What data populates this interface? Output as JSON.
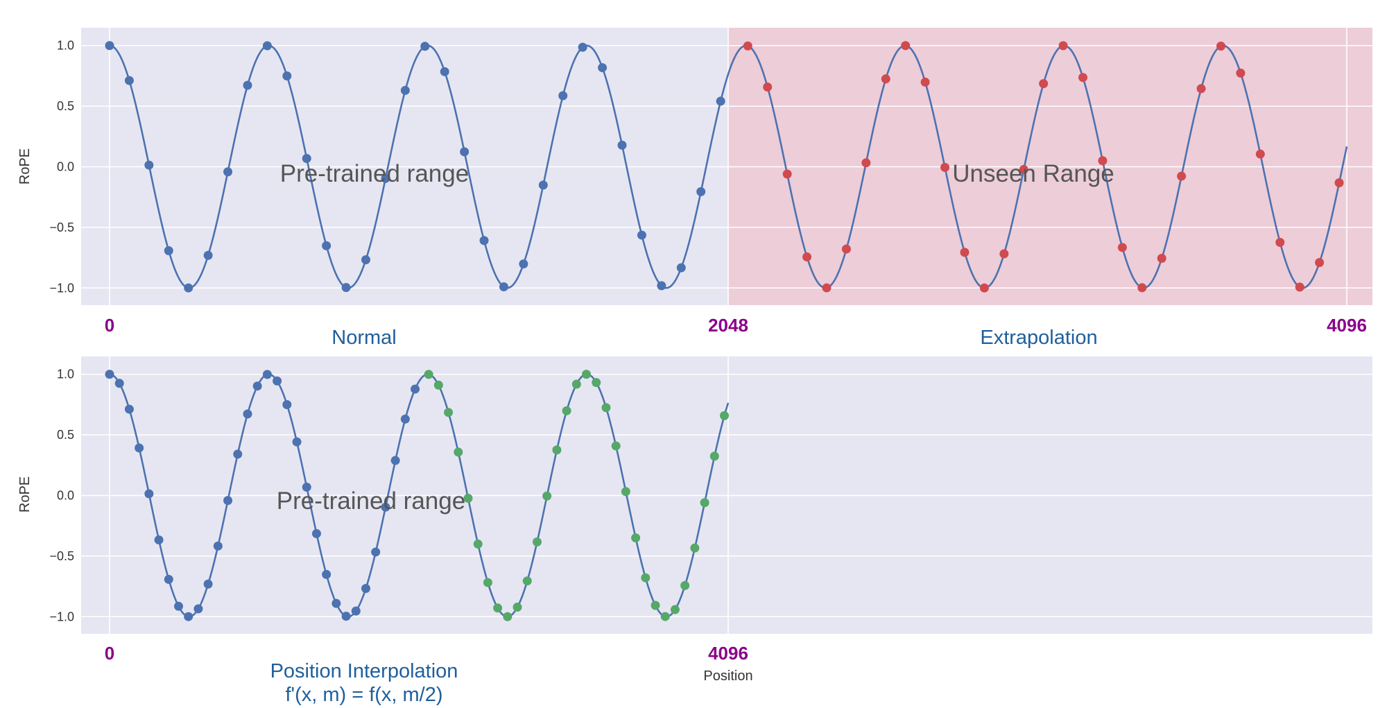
{
  "colors": {
    "curve": "#4c72b0",
    "normal_point": "#4c72b0",
    "extrapolation_point": "#d04a4f",
    "interpolation_point": "#55a868",
    "unseen_region": "#f2b8c2",
    "position_label": "#8b008b",
    "caption": "#1f5f9c",
    "plot_background": "#e6e6f2"
  },
  "chart_data": [
    {
      "type": "line",
      "panel": "top",
      "ylabel": "RoPE",
      "ylim": [
        -1.05,
        1.05
      ],
      "xlim": [
        0,
        4096
      ],
      "yticks": [
        "1.0",
        "0.5",
        "0.0",
        "−0.5",
        "−1.0"
      ],
      "ytick_values": [
        1.0,
        0.5,
        0.0,
        -0.5,
        -1.0
      ],
      "grid": true,
      "curve": {
        "function": "cos",
        "period": 526.7,
        "x_start": 0,
        "x_end": 4096
      },
      "position_labels": [
        {
          "text": "0",
          "value": 0
        },
        {
          "text": "2048",
          "value": 2048
        },
        {
          "text": "4096",
          "value": 4096
        }
      ],
      "regions": [
        {
          "name": "Normal",
          "x_range": [
            0,
            2048
          ],
          "annotation": "Pre-trained range"
        },
        {
          "name": "Extrapolation",
          "x_range": [
            2048,
            4096
          ],
          "annotation": "Unseen Range",
          "shaded": true
        }
      ],
      "series": [
        {
          "kind": "normal",
          "x_start": 0,
          "x_end": 2048,
          "step": 65.26
        },
        {
          "kind": "extrapolation",
          "x_start": 2113,
          "x_end": 4096,
          "step": 65.26
        }
      ]
    },
    {
      "type": "line",
      "panel": "bottom",
      "ylabel": "RoPE",
      "xlabel": "Position",
      "ylim": [
        -1.05,
        1.05
      ],
      "xlim": [
        0,
        8192
      ],
      "yticks": [
        "1.0",
        "0.5",
        "0.0",
        "−0.5",
        "−1.0"
      ],
      "ytick_values": [
        1.0,
        0.5,
        0.0,
        -0.5,
        -1.0
      ],
      "grid": true,
      "curve": {
        "function": "cos",
        "period": 1053.4,
        "x_start": 0,
        "x_end": 4096
      },
      "position_labels": [
        {
          "text": "0",
          "value": 0
        },
        {
          "text": "4096",
          "value": 4096
        }
      ],
      "regions": [
        {
          "name": "Position Interpolation",
          "formula": "f'(x, m) = f(x, m/2)",
          "x_range": [
            0,
            4096
          ],
          "annotation": "Pre-trained range"
        }
      ],
      "series": [
        {
          "kind": "normal",
          "x_start": 0,
          "x_end": 2048,
          "step": 65.26
        },
        {
          "kind": "interpolation",
          "x_start": 2113,
          "x_end": 4096,
          "step": 65.26
        }
      ]
    }
  ],
  "top": {
    "annotation_left": "Pre-trained range",
    "annotation_right": "Unseen Range",
    "caption_left": "Normal",
    "caption_right": "Extrapolation",
    "pos_0": "0",
    "pos_mid": "2048",
    "pos_end": "4096",
    "ylabel": "RoPE"
  },
  "bottom": {
    "annotation": "Pre-trained range",
    "caption_title": "Position Interpolation",
    "caption_formula": "f'(x, m) = f(x, m/2)",
    "pos_0": "0",
    "pos_end": "4096",
    "xlabel": "Position",
    "ylabel": "RoPE"
  }
}
